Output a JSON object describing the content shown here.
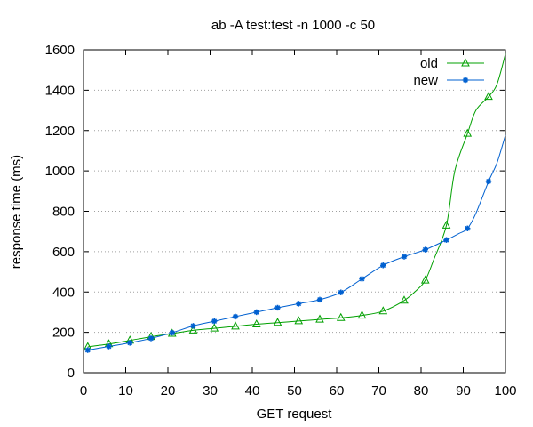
{
  "chart_data": {
    "type": "line",
    "title": "ab -A test:test -n 1000 -c 50",
    "xlabel": "GET request",
    "ylabel": "response time (ms)",
    "xlim": [
      0,
      100
    ],
    "ylim": [
      0,
      1600
    ],
    "xticks": [
      0,
      10,
      20,
      30,
      40,
      50,
      60,
      70,
      80,
      90,
      100
    ],
    "yticks": [
      0,
      200,
      400,
      600,
      800,
      1000,
      1200,
      1400,
      1600
    ],
    "grid": "horizontal dotted",
    "legend_position": "top-right",
    "series": [
      {
        "name": "old",
        "color": "#00a000",
        "marker": "triangle",
        "marker_x": [
          1,
          6,
          11,
          16,
          21,
          26,
          31,
          36,
          41,
          46,
          51,
          56,
          61,
          66,
          71,
          76,
          81,
          86,
          91,
          96
        ],
        "marker_y": [
          128,
          142,
          160,
          178,
          194,
          210,
          220,
          230,
          240,
          248,
          256,
          264,
          272,
          284,
          305,
          358,
          458,
          730,
          1185,
          1368
        ],
        "curve_x": [
          1,
          6,
          11,
          16,
          21,
          26,
          31,
          36,
          41,
          46,
          51,
          56,
          61,
          66,
          71,
          76,
          79,
          81,
          83,
          86,
          88,
          91,
          93,
          96,
          98,
          100
        ],
        "curve_y": [
          128,
          142,
          160,
          178,
          194,
          210,
          220,
          230,
          240,
          248,
          256,
          264,
          272,
          284,
          305,
          358,
          410,
          458,
          560,
          730,
          1000,
          1185,
          1300,
          1368,
          1430,
          1580
        ]
      },
      {
        "name": "new",
        "color": "#0060d0",
        "marker": "star",
        "marker_x": [
          1,
          6,
          11,
          16,
          21,
          26,
          31,
          36,
          41,
          46,
          51,
          56,
          61,
          66,
          71,
          76,
          81,
          86,
          91,
          96
        ],
        "marker_y": [
          112,
          130,
          148,
          170,
          198,
          232,
          255,
          278,
          300,
          322,
          342,
          362,
          398,
          465,
          532,
          575,
          610,
          658,
          715,
          948
        ],
        "curve_x": [
          1,
          6,
          11,
          16,
          21,
          26,
          31,
          36,
          41,
          46,
          51,
          56,
          61,
          66,
          71,
          76,
          81,
          86,
          89,
          91,
          93,
          96,
          98,
          100
        ],
        "curve_y": [
          112,
          130,
          148,
          170,
          198,
          232,
          255,
          278,
          300,
          322,
          342,
          362,
          398,
          465,
          532,
          575,
          610,
          658,
          690,
          715,
          790,
          948,
          1040,
          1178
        ]
      }
    ]
  }
}
